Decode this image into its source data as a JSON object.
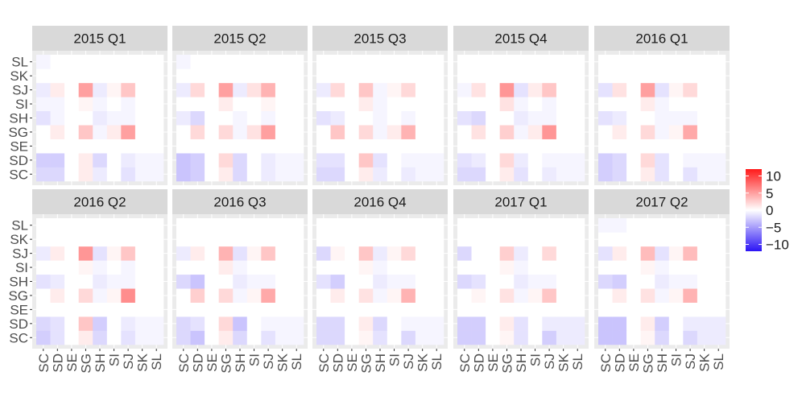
{
  "chart_data": {
    "type": "heatmap",
    "categories": [
      "SC",
      "SD",
      "SE",
      "SG",
      "SH",
      "SI",
      "SJ",
      "SK",
      "SL"
    ],
    "y_categories_bottom_to_top": [
      "SC",
      "SD",
      "SE",
      "SG",
      "SH",
      "SI",
      "SJ",
      "SK",
      "SL"
    ],
    "color_scale": {
      "low": "#2b14f5",
      "mid": "#ffffff",
      "high": "#ff1a1a",
      "limits": [
        -12,
        12
      ]
    },
    "legend": {
      "breaks": [
        10,
        5,
        0,
        -5,
        -10
      ],
      "labels": [
        "10",
        "5",
        "0",
        "−5",
        "−10"
      ],
      "position": "right"
    },
    "grid": true,
    "panels": [
      {
        "title": "2015 Q1",
        "values": [
          [
            -2.0,
            -2.0,
            0,
            1.0,
            -1.0,
            0,
            -1.5,
            -0.5,
            -0.5
          ],
          [
            -2.5,
            -2.5,
            0,
            1.0,
            -2.0,
            0,
            -1.0,
            -0.5,
            -0.5
          ],
          [
            0,
            0,
            0,
            0,
            0,
            0,
            0,
            0,
            0
          ],
          [
            0,
            1.0,
            0,
            3.0,
            -0.5,
            1.0,
            5.0,
            0,
            0
          ],
          [
            -1.5,
            -0.5,
            0,
            0,
            -1.0,
            -0.5,
            -0.5,
            0,
            0
          ],
          [
            -0.5,
            -0.5,
            0,
            0.5,
            -0.5,
            0,
            -0.5,
            0,
            0
          ],
          [
            -1.0,
            1.0,
            0,
            5.0,
            -1.0,
            0.5,
            3.0,
            0,
            0
          ],
          [
            0,
            0,
            0,
            0,
            0,
            0,
            0,
            0,
            0
          ],
          [
            -0.5,
            0,
            0,
            0,
            0,
            0,
            0,
            0,
            0
          ]
        ]
      },
      {
        "title": "2015 Q2",
        "values": [
          [
            -3.0,
            -2.5,
            0,
            1.0,
            -2.0,
            0,
            -1.0,
            -0.5,
            -0.5
          ],
          [
            -3.0,
            -2.5,
            0,
            2.0,
            -2.0,
            0,
            -1.0,
            -0.5,
            -0.5
          ],
          [
            0,
            0,
            0,
            0,
            0,
            0,
            0,
            0,
            0
          ],
          [
            0,
            2.0,
            0,
            2.0,
            -0.5,
            1.5,
            5.0,
            0,
            0
          ],
          [
            -1.0,
            -2.0,
            0,
            0,
            -0.5,
            0,
            -0.5,
            0,
            0
          ],
          [
            0,
            0,
            0,
            1.0,
            0,
            0,
            0.5,
            0,
            0
          ],
          [
            -1.0,
            2.0,
            0,
            5.0,
            -1.0,
            1.5,
            4.0,
            0,
            0
          ],
          [
            0,
            0,
            0,
            0,
            0,
            0,
            0,
            0,
            0
          ],
          [
            -0.5,
            0,
            0,
            0,
            0,
            0,
            0,
            0,
            0
          ]
        ]
      },
      {
        "title": "2015 Q3",
        "values": [
          [
            -2.0,
            -2.0,
            0,
            1.0,
            -1.0,
            0,
            -1.0,
            -0.5,
            -0.5
          ],
          [
            -1.5,
            -1.5,
            0,
            3.0,
            -1.5,
            0,
            -0.5,
            -0.5,
            -0.5
          ],
          [
            0,
            0,
            0,
            0,
            0,
            0,
            0,
            0,
            0
          ],
          [
            0,
            3.0,
            0,
            2.0,
            -0.5,
            1.0,
            4.0,
            0,
            0
          ],
          [
            -1.5,
            -1.0,
            0,
            0,
            -0.5,
            0,
            -0.5,
            0,
            0
          ],
          [
            0,
            0,
            0,
            1.0,
            -0.5,
            0,
            0,
            0,
            0
          ],
          [
            -1.0,
            2.0,
            0,
            3.0,
            -0.5,
            0.5,
            2.0,
            0,
            0
          ],
          [
            0,
            0,
            0,
            0,
            0,
            0,
            0,
            0,
            0
          ],
          [
            0,
            0,
            0,
            0,
            0,
            0,
            0,
            0,
            0
          ]
        ]
      },
      {
        "title": "2015 Q4",
        "values": [
          [
            -2.0,
            -2.0,
            0,
            1.0,
            -1.5,
            0,
            -1.0,
            -0.5,
            -0.5
          ],
          [
            -1.5,
            -1.0,
            0,
            2.0,
            -1.0,
            0,
            -0.5,
            -0.5,
            -0.5
          ],
          [
            0,
            0,
            0,
            0,
            0,
            0,
            0,
            0,
            0
          ],
          [
            0,
            1.5,
            0,
            2.5,
            -0.5,
            1.0,
            5.5,
            0,
            0
          ],
          [
            -1.5,
            -2.0,
            0,
            0,
            -1.0,
            -0.5,
            -0.5,
            0,
            0
          ],
          [
            0,
            0,
            0,
            1.5,
            -0.5,
            0,
            -0.5,
            0,
            0
          ],
          [
            -0.5,
            1.5,
            0,
            5.5,
            -1.5,
            1.0,
            3.0,
            0,
            0
          ],
          [
            0,
            0,
            0,
            0,
            0,
            0,
            0,
            0,
            0
          ],
          [
            0,
            0,
            0,
            0,
            0,
            0,
            0,
            0,
            0
          ]
        ]
      },
      {
        "title": "2016 Q1",
        "values": [
          [
            -2.5,
            -2.0,
            0,
            1.0,
            -1.5,
            0,
            -1.5,
            -0.5,
            -0.5
          ],
          [
            -2.5,
            -2.0,
            0,
            2.0,
            -1.5,
            0,
            -0.5,
            -0.5,
            -0.5
          ],
          [
            0,
            0,
            0,
            0,
            0,
            0,
            0,
            0,
            0
          ],
          [
            0,
            1.0,
            0,
            2.0,
            -0.5,
            0.5,
            4.5,
            0,
            0
          ],
          [
            -1.5,
            -1.0,
            0,
            0,
            -0.5,
            -0.5,
            -0.5,
            0,
            0
          ],
          [
            0,
            0,
            0,
            1.0,
            -0.5,
            0,
            0,
            0,
            0
          ],
          [
            -1.5,
            1.5,
            0,
            5.0,
            -1.5,
            0.5,
            2.0,
            0,
            0
          ],
          [
            0,
            0,
            0,
            0,
            0,
            0,
            0,
            0,
            0
          ],
          [
            0,
            0,
            0,
            0,
            0,
            0,
            0,
            0,
            0
          ]
        ]
      },
      {
        "title": "2016 Q2",
        "values": [
          [
            -2.5,
            -1.5,
            0,
            1.0,
            -2.0,
            0,
            -1.5,
            -0.5,
            -0.5
          ],
          [
            -2.0,
            -1.5,
            0,
            3.0,
            -2.5,
            0,
            -1.0,
            -0.5,
            -0.5
          ],
          [
            0,
            0,
            0,
            0,
            0,
            0,
            0,
            0,
            0
          ],
          [
            0,
            1.0,
            0,
            2.0,
            -0.5,
            0.5,
            6.0,
            0,
            0
          ],
          [
            -1.5,
            -1.0,
            0,
            0,
            -1.0,
            -0.5,
            -0.5,
            0,
            0
          ],
          [
            0,
            0,
            0,
            0.5,
            -0.5,
            0,
            -0.5,
            0,
            0
          ],
          [
            -1.0,
            1.0,
            0,
            5.5,
            -1.5,
            0.5,
            3.0,
            0,
            0
          ],
          [
            0,
            0,
            0,
            0,
            0,
            0,
            0,
            0,
            0
          ],
          [
            0,
            0,
            0,
            0,
            0,
            0,
            0,
            0,
            0
          ]
        ]
      },
      {
        "title": "2016 Q3",
        "values": [
          [
            -2.0,
            -3.0,
            0,
            1.0,
            -2.0,
            0,
            -1.5,
            -0.5,
            -0.5
          ],
          [
            -2.0,
            -1.5,
            0,
            2.0,
            -3.0,
            0,
            -0.5,
            -0.5,
            -0.5
          ],
          [
            0,
            0,
            0,
            0,
            0,
            0,
            0,
            0,
            0
          ],
          [
            0,
            2.5,
            0,
            2.0,
            -0.5,
            0.5,
            4.5,
            0,
            0
          ],
          [
            -2.0,
            -3.0,
            0,
            0,
            -1.0,
            -0.5,
            -0.5,
            0,
            0
          ],
          [
            0,
            0,
            0,
            1.0,
            -0.5,
            0,
            0,
            0,
            0
          ],
          [
            -1.0,
            1.0,
            0,
            4.0,
            -1.5,
            0.5,
            3.0,
            0,
            0
          ],
          [
            0,
            0,
            0,
            0,
            0,
            0,
            0,
            0,
            0
          ],
          [
            0,
            0,
            0,
            0,
            0,
            0,
            0,
            0,
            0
          ]
        ]
      },
      {
        "title": "2016 Q4",
        "values": [
          [
            -2.0,
            -2.0,
            0,
            0.5,
            -1.5,
            0,
            -2.0,
            -0.5,
            -0.5
          ],
          [
            -2.0,
            -2.0,
            0,
            1.0,
            -2.0,
            0,
            -0.5,
            -0.5,
            -0.5
          ],
          [
            0,
            0,
            0,
            0,
            0,
            0,
            0,
            0,
            0
          ],
          [
            0,
            1.0,
            0,
            1.5,
            -0.5,
            0.5,
            4.0,
            0,
            0
          ],
          [
            -1.5,
            -2.5,
            0,
            0,
            -1.0,
            -0.5,
            -0.5,
            0,
            0
          ],
          [
            0,
            0,
            0,
            0.5,
            -0.5,
            0,
            0,
            0,
            0
          ],
          [
            -2.0,
            0.5,
            0,
            3.0,
            -1.0,
            0.5,
            2.0,
            0,
            0
          ],
          [
            0,
            0,
            0,
            0,
            0,
            0,
            0,
            0,
            0
          ],
          [
            0,
            0,
            0,
            0,
            0,
            0,
            0,
            0,
            0
          ]
        ]
      },
      {
        "title": "2017 Q1",
        "values": [
          [
            -2.5,
            -2.5,
            0,
            0.5,
            -1.5,
            0,
            -2.5,
            -1.0,
            -1.0
          ],
          [
            -2.5,
            -2.5,
            0,
            1.0,
            -1.5,
            0,
            -1.0,
            -1.0,
            -1.0
          ],
          [
            0,
            0,
            0,
            0,
            0,
            0,
            0,
            0,
            0
          ],
          [
            0,
            0.5,
            0,
            1.5,
            -0.5,
            0.5,
            3.0,
            0,
            0
          ],
          [
            -2.0,
            -1.5,
            0,
            0,
            -1.0,
            -0.5,
            -0.5,
            0,
            0
          ],
          [
            0,
            0,
            0,
            0.5,
            -0.5,
            0,
            0,
            0,
            0
          ],
          [
            -2.0,
            0,
            0,
            2.5,
            -1.0,
            0,
            2.0,
            0,
            0
          ],
          [
            0,
            0,
            0,
            0,
            0,
            0,
            0,
            0,
            0
          ],
          [
            0,
            0,
            0,
            0,
            0,
            0,
            0,
            0,
            0
          ]
        ]
      },
      {
        "title": "2017 Q2",
        "values": [
          [
            -3.0,
            -3.0,
            0,
            0.5,
            -2.0,
            0,
            -2.0,
            -1.0,
            -1.0
          ],
          [
            -3.0,
            -3.0,
            0,
            1.0,
            -2.5,
            0,
            -1.0,
            -1.0,
            -1.0
          ],
          [
            0,
            0,
            0,
            0,
            0,
            0,
            0,
            0,
            0
          ],
          [
            0,
            1.0,
            0,
            1.5,
            -0.5,
            0.5,
            4.0,
            0,
            0
          ],
          [
            -2.0,
            -2.5,
            0,
            0,
            -1.0,
            -0.5,
            -0.5,
            0,
            0
          ],
          [
            0,
            0,
            0,
            0.5,
            -0.5,
            0,
            0,
            0,
            0
          ],
          [
            -1.5,
            1.0,
            0,
            3.5,
            -1.5,
            0.5,
            3.5,
            0,
            0
          ],
          [
            0,
            0,
            0,
            0,
            0,
            0,
            0,
            0,
            0
          ],
          [
            -0.5,
            -0.5,
            0,
            0,
            0,
            0,
            0,
            0,
            0
          ]
        ]
      }
    ]
  }
}
